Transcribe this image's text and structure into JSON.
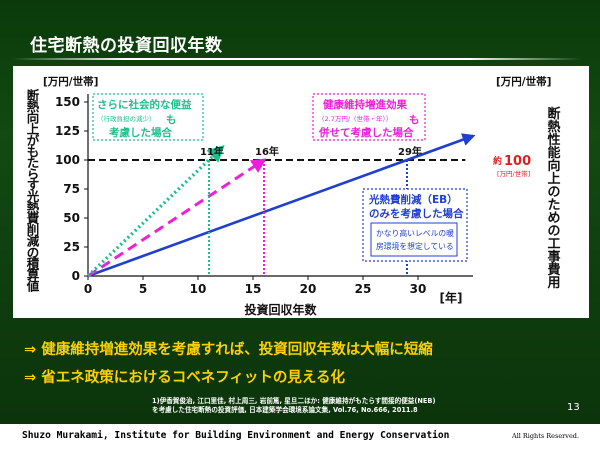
{
  "slide": {
    "title": "住宅断熱の投資回収年数",
    "conclusions": [
      "⇒ 健康維持増進効果を考慮すれば、投資回収年数は大幅に短縮",
      "⇒ 省エネ政策におけるコベネフィットの見える化"
    ],
    "reference_lines": [
      "1)伊香賀俊治, 江口里佳, 村上周三, 岩前篤, 星旦二ほか: 健康維持がもたらす間接的便益(NEB)",
      "を考慮した住宅断熱の投資評価, 日本建築学会環境系論文集, Vol.76, No.666, 2011.8"
    ],
    "page_number": "13",
    "footer_credit": "Shuzo Murakami,  Institute for Building Environment and Energy Conservation",
    "footer_rights": "All Rights Reserved."
  },
  "chart_data": {
    "type": "line",
    "xlabel": "投資回収年数",
    "xunit": "[年]",
    "ylabel_left": "断熱向上がもたらす光熱費削減の積算値",
    "ylabel_left_unit": "[万円/世帯]",
    "ylabel_right": "断熱性能向上のための工事費用",
    "ylabel_right_unit": "[万円/世帯]",
    "xlim": [
      0,
      35
    ],
    "ylim": [
      0,
      150
    ],
    "xticks": [
      0,
      5,
      10,
      15,
      20,
      25,
      30
    ],
    "yticks": [
      0,
      25,
      50,
      75,
      100,
      125,
      150
    ],
    "grid": false,
    "series": [
      {
        "points": [
          [
            0,
            0
          ],
          [
            29,
            100
          ],
          [
            35,
            120.7
          ]
        ],
        "color": "#1f3fd0",
        "style": "solid",
        "annotation": {
          "lines": [
            "光熱費削減（EB）",
            "のみを考慮した場合"
          ],
          "sublines": [
            "かなり高いレベルの暖",
            "房環境を想定している"
          ]
        },
        "payback_label": "29年",
        "payback_year": 29
      },
      {
        "points": [
          [
            0,
            0
          ],
          [
            16,
            100
          ]
        ],
        "color": "#ee1fd8",
        "style": "dashed",
        "annotation": {
          "lines": [
            "健康維持増進効果",
            "も",
            "併せて考慮した場合"
          ],
          "sublines": [
            "（2.7万円/（世帯・年））"
          ]
        },
        "payback_label": "16年",
        "payback_year": 16
      },
      {
        "points": [
          [
            0,
            0
          ],
          [
            11,
            100
          ],
          [
            12.2,
            111
          ]
        ],
        "color": "#1fbf8c",
        "style": "dotted",
        "annotation": {
          "lines": [
            "さらに社会的な便益",
            "も",
            "考慮した場合"
          ],
          "sublines": [
            "（行政負担の減少）"
          ]
        },
        "payback_label": "11年",
        "payback_year": 11
      }
    ],
    "cost_line": {
      "value": 100,
      "label_prefix": "約",
      "label_value": "100",
      "label_unit": "[万円/世帯]",
      "color": "#111111",
      "label_color": "#dd1f1f"
    }
  }
}
